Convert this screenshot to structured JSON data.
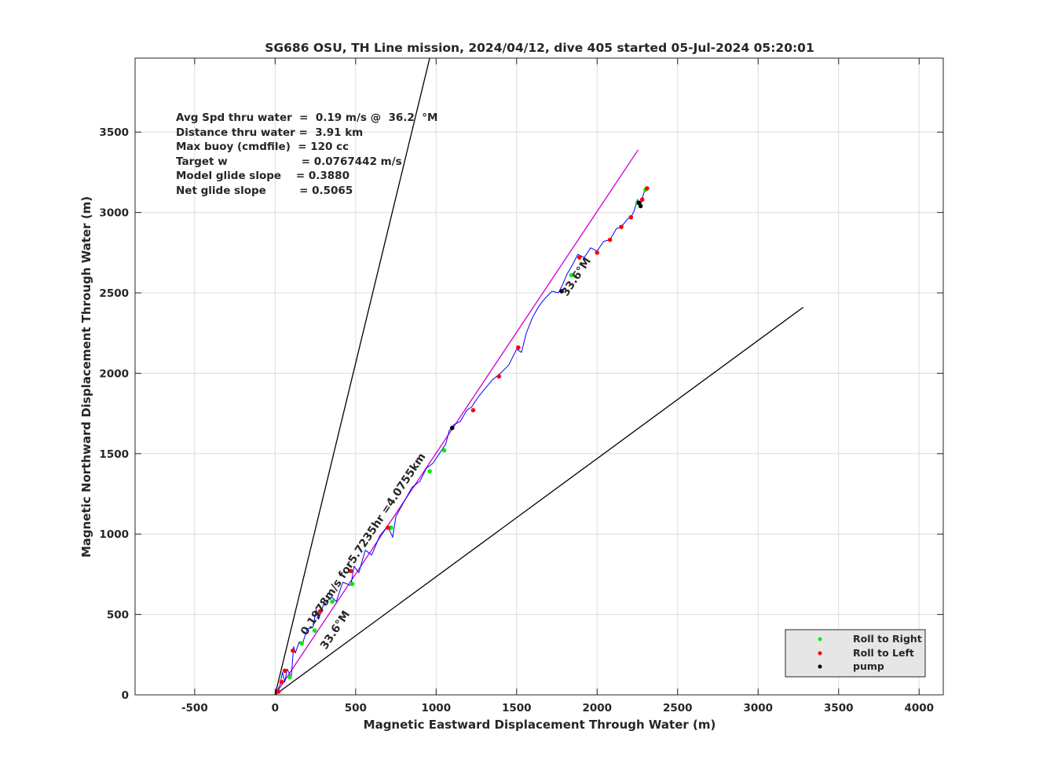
{
  "chart_data": {
    "type": "line",
    "title": "SG686 OSU, TH Line mission, 2024/04/12, dive 405 started 05-Jul-2024 05:20:01",
    "xlabel": "Magnetic Eastward Displacement Through Water (m)",
    "ylabel": "Magnetic Northward Displacement Through Water (m)",
    "xlim": [
      -870,
      4150
    ],
    "ylim": [
      0,
      3960
    ],
    "xticks": [
      -500,
      0,
      500,
      1000,
      1500,
      2000,
      2500,
      3000,
      3500,
      4000
    ],
    "yticks": [
      0,
      500,
      1000,
      1500,
      2000,
      2500,
      3000,
      3500
    ],
    "grid": true,
    "info_lines": [
      "Avg Spd thru water  =  0.19 m/s @  36.2  °M",
      "Distance thru water =  3.91 km",
      "Max buoy (cmdfile)  = 120 cc",
      "Target w                    = 0.0767442 m/s",
      "Model glide slope    = 0.3880",
      "Net glide slope         = 0.5065"
    ],
    "annotations": {
      "heading_lower": "33.6°M",
      "heading_upper": "33.6°M",
      "speed_label": "0.1978m/s for5.7235hr =4.0755km"
    },
    "legend": {
      "placement": "bottom-right",
      "entries": [
        "Roll to Right",
        "Roll to Left",
        "pump"
      ]
    },
    "series": [
      {
        "role": "cone-left",
        "color": "#000000",
        "x": [
          0,
          960
        ],
        "y": [
          0,
          3960
        ]
      },
      {
        "role": "cone-right",
        "color": "#000000",
        "x": [
          0,
          3280
        ],
        "y": [
          0,
          2410
        ]
      },
      {
        "role": "planned-track",
        "color": "#cc00cc",
        "x": [
          0,
          2255
        ],
        "y": [
          0,
          3390
        ]
      },
      {
        "role": "glider-track",
        "color": "#0000ff",
        "x": [
          0,
          30,
          45,
          60,
          75,
          100,
          115,
          125,
          150,
          170,
          200,
          235,
          255,
          270,
          300,
          350,
          380,
          420,
          470,
          490,
          520,
          560,
          600,
          650,
          700,
          730,
          750,
          800,
          850,
          900,
          940,
          980,
          1020,
          1060,
          1080,
          1110,
          1150,
          1190,
          1220,
          1260,
          1300,
          1350,
          1400,
          1450,
          1500,
          1530,
          1560,
          1600,
          1640,
          1680,
          1720,
          1760,
          1790,
          1810,
          1850,
          1880,
          1920,
          1960,
          2000,
          2040,
          2080,
          2120,
          2150,
          2190,
          2210,
          2230,
          2250,
          2270,
          2290,
          2300
        ],
        "y": [
          0,
          60,
          140,
          80,
          160,
          110,
          300,
          260,
          330,
          320,
          410,
          420,
          530,
          470,
          560,
          610,
          580,
          700,
          680,
          800,
          760,
          900,
          870,
          990,
          1050,
          980,
          1110,
          1200,
          1290,
          1330,
          1410,
          1440,
          1500,
          1560,
          1640,
          1680,
          1700,
          1770,
          1790,
          1850,
          1900,
          1960,
          2000,
          2050,
          2150,
          2130,
          2250,
          2350,
          2420,
          2470,
          2510,
          2500,
          2560,
          2610,
          2680,
          2740,
          2720,
          2780,
          2760,
          2820,
          2830,
          2900,
          2910,
          2960,
          2970,
          3010,
          3080,
          3050,
          3120,
          3150
        ]
      }
    ],
    "markers": {
      "roll_right_color": "#00ee00",
      "roll_left_color": "#ff0000",
      "pump_color": "#000000",
      "roll_right": [
        [
          90,
          110
        ],
        [
          165,
          320
        ],
        [
          245,
          400
        ],
        [
          355,
          580
        ],
        [
          480,
          690
        ],
        [
          720,
          1040
        ],
        [
          960,
          1390
        ],
        [
          1050,
          1520
        ],
        [
          1840,
          2610
        ],
        [
          2250,
          3060
        ],
        [
          2300,
          3140
        ]
      ],
      "roll_left": [
        [
          20,
          20
        ],
        [
          40,
          80
        ],
        [
          60,
          150
        ],
        [
          110,
          275
        ],
        [
          280,
          520
        ],
        [
          470,
          770
        ],
        [
          700,
          1040
        ],
        [
          1230,
          1770
        ],
        [
          1390,
          1980
        ],
        [
          1510,
          2160
        ],
        [
          1890,
          2720
        ],
        [
          2000,
          2750
        ],
        [
          2080,
          2830
        ],
        [
          2150,
          2910
        ],
        [
          2210,
          2970
        ],
        [
          2280,
          3080
        ],
        [
          2310,
          3150
        ]
      ],
      "pump": [
        [
          1100,
          1660
        ],
        [
          1780,
          2510
        ],
        [
          2260,
          3060
        ],
        [
          2270,
          3040
        ]
      ]
    },
    "colors": {
      "axis": "#262626",
      "grid": "#dcdcdc",
      "legend_bg": "#e6e6e6"
    }
  }
}
